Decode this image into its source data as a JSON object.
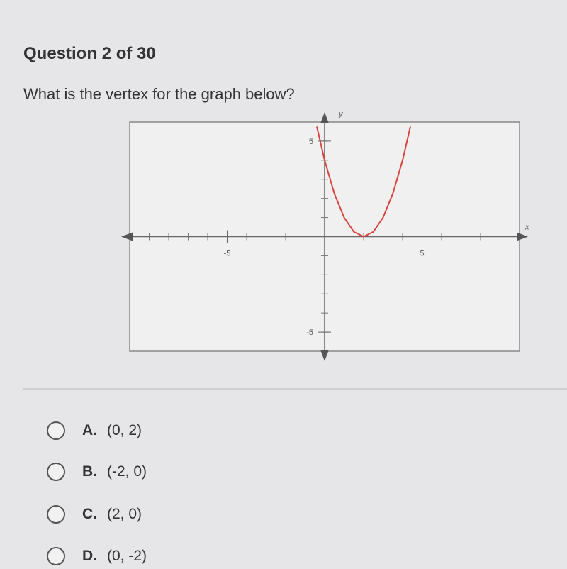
{
  "header": {
    "title": "Question 2 of 30"
  },
  "question": "What is the vertex for the graph below?",
  "chart_data": {
    "type": "line",
    "x_label": "x",
    "y_label": "y",
    "xlim": [
      -10,
      10
    ],
    "ylim": [
      -6,
      6
    ],
    "xticks": [
      -5,
      5
    ],
    "yticks": [
      -5,
      5
    ],
    "x": [
      -0.4,
      0,
      0.5,
      1,
      1.5,
      2,
      2.5,
      3,
      3.5,
      4,
      4.4
    ],
    "series": [
      {
        "color": "#d6453d",
        "values": [
          5.76,
          4,
          2.25,
          1,
          0.25,
          0,
          0.25,
          1,
          2.25,
          4,
          5.76
        ]
      }
    ]
  },
  "options": [
    {
      "letter": "A.",
      "text": "(0, 2)"
    },
    {
      "letter": "B.",
      "text": "(-2, 0)"
    },
    {
      "letter": "C.",
      "text": "(2, 0)"
    },
    {
      "letter": "D.",
      "text": "(0, -2)"
    }
  ]
}
